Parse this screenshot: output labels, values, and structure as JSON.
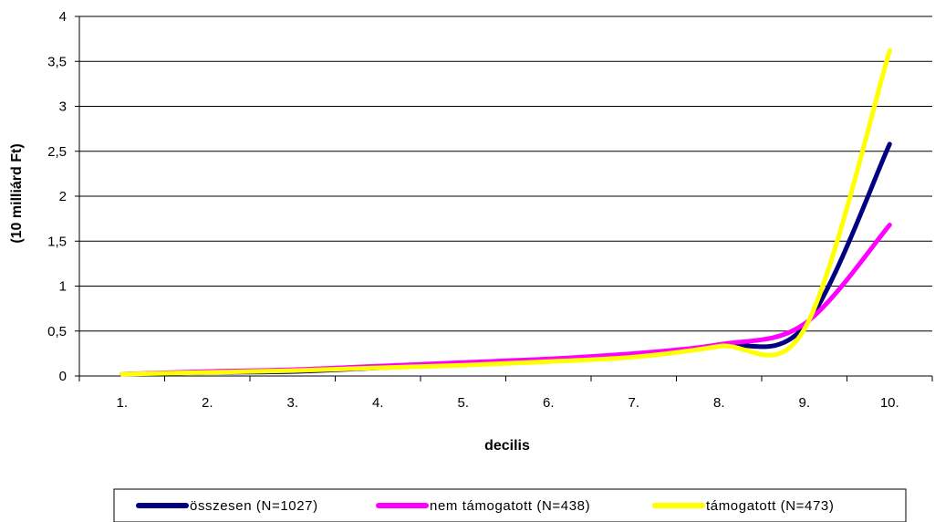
{
  "chart_data": {
    "type": "line",
    "title": "",
    "xlabel": "decilis",
    "ylabel": "(10 milliárd Ft)",
    "categories": [
      "1.",
      "2.",
      "3.",
      "4.",
      "5.",
      "6.",
      "7.",
      "8.",
      "9.",
      "10."
    ],
    "yticks": [
      "0",
      "0,5",
      "1",
      "1,5",
      "2",
      "2,5",
      "3",
      "3,5",
      "4"
    ],
    "ylim": [
      0,
      4
    ],
    "grid": "horizontal",
    "legend_position": "bottom",
    "series": [
      {
        "name": "összesen (N=1027)",
        "color": "#000080",
        "values": [
          0.02,
          0.04,
          0.05,
          0.09,
          0.13,
          0.17,
          0.22,
          0.34,
          0.55,
          2.58
        ]
      },
      {
        "name": "nem támogatott (N=438)",
        "color": "#ff00ff",
        "values": [
          0.02,
          0.05,
          0.07,
          0.11,
          0.15,
          0.19,
          0.25,
          0.35,
          0.58,
          1.68
        ]
      },
      {
        "name": "támogatott (N=473)",
        "color": "#ffff00",
        "values": [
          0.02,
          0.04,
          0.06,
          0.09,
          0.12,
          0.16,
          0.21,
          0.33,
          0.52,
          3.62
        ]
      }
    ]
  }
}
